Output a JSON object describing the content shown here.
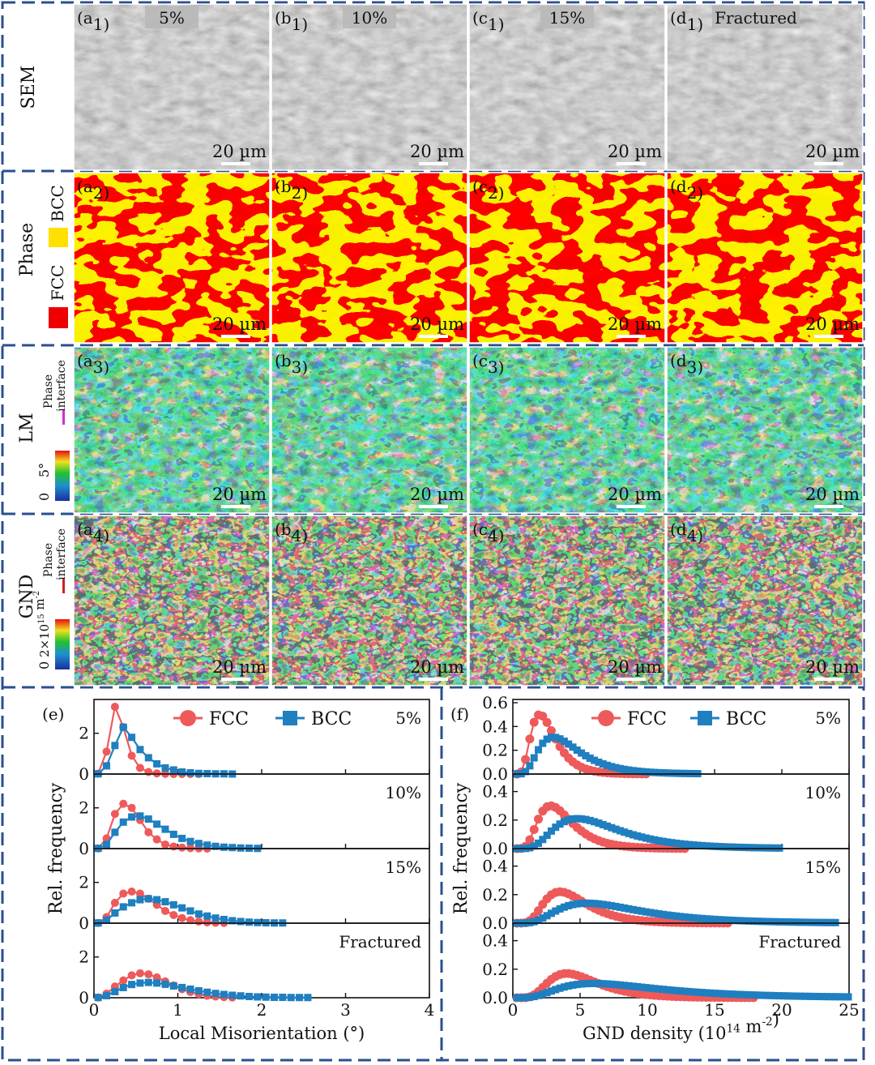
{
  "rows": [
    {
      "label": "SEM",
      "scale": "20 µm",
      "panels": [
        {
          "letter": "a",
          "sub": "1",
          "strain": "5%"
        },
        {
          "letter": "b",
          "sub": "1",
          "strain": "10%"
        },
        {
          "letter": "c",
          "sub": "1",
          "strain": "15%"
        },
        {
          "letter": "d",
          "sub": "1",
          "strain": "Fractured"
        }
      ]
    },
    {
      "label": "Phase",
      "scale": "20 µm",
      "legend": {
        "bcc": "BCC",
        "fcc": "FCC",
        "bcc_color": "#ffe000",
        "fcc_color": "#ee0000"
      },
      "panels": [
        {
          "letter": "a",
          "sub": "2"
        },
        {
          "letter": "b",
          "sub": "2"
        },
        {
          "letter": "c",
          "sub": "2"
        },
        {
          "letter": "d",
          "sub": "2"
        }
      ]
    },
    {
      "label": "LM",
      "scale": "20 µm",
      "legend": {
        "interface_1": "Phase",
        "interface_2": "interface",
        "interface_color": "#cc33cc",
        "max": "5°",
        "min": "0"
      },
      "panels": [
        {
          "letter": "a",
          "sub": "3"
        },
        {
          "letter": "b",
          "sub": "3"
        },
        {
          "letter": "c",
          "sub": "3"
        },
        {
          "letter": "d",
          "sub": "3"
        }
      ]
    },
    {
      "label": "GND",
      "scale": "20 µm",
      "legend": {
        "interface_1": "Phase",
        "interface_2": "interface",
        "interface_color": "#cc2222",
        "max": "2×10",
        "max_exp": "15",
        "max_unit": " m",
        "max_unit_exp": "-2",
        "min": "0"
      },
      "panels": [
        {
          "letter": "a",
          "sub": "4"
        },
        {
          "letter": "b",
          "sub": "4"
        },
        {
          "letter": "c",
          "sub": "4"
        },
        {
          "letter": "d",
          "sub": "4"
        }
      ]
    }
  ],
  "chart_data": [
    {
      "type": "line",
      "panel": "(e)",
      "xlabel": "Local Misorientation (°)",
      "ylabel": "Rel. frequency",
      "xlim": [
        0,
        4
      ],
      "xticks": [
        0,
        1,
        2,
        3,
        4
      ],
      "legend": [
        "FCC",
        "BCC"
      ],
      "colors": {
        "FCC": "#ee5a5a",
        "BCC": "#1f7fc0"
      },
      "subplots": [
        {
          "label": "5%",
          "ylim": [
            0,
            3.5
          ],
          "yticks": [
            0,
            2
          ],
          "series": [
            {
              "name": "FCC",
              "x": [
                0.05,
                0.15,
                0.25,
                0.35,
                0.45,
                0.55,
                0.65,
                0.75,
                0.85,
                0.95,
                1.05,
                1.15,
                1.25
              ],
              "values": [
                0.02,
                1.1,
                3.3,
                2.3,
                0.9,
                0.3,
                0.1,
                0.03,
                0.01,
                0,
                0,
                0,
                0
              ]
            },
            {
              "name": "BCC",
              "x": [
                0.05,
                0.15,
                0.25,
                0.35,
                0.45,
                0.55,
                0.65,
                0.75,
                0.85,
                0.95,
                1.05,
                1.15,
                1.25,
                1.35,
                1.45,
                1.55,
                1.65
              ],
              "values": [
                0.01,
                0.4,
                1.4,
                2.3,
                1.8,
                1.2,
                0.8,
                0.5,
                0.3,
                0.2,
                0.1,
                0.06,
                0.03,
                0.02,
                0.01,
                0.01,
                0
              ]
            }
          ]
        },
        {
          "label": "10%",
          "ylim": [
            0,
            3.5
          ],
          "yticks": [
            0,
            2
          ],
          "series": [
            {
              "name": "FCC",
              "x": [
                0.05,
                0.15,
                0.25,
                0.35,
                0.45,
                0.55,
                0.65,
                0.75,
                0.85,
                0.95,
                1.05,
                1.15,
                1.25,
                1.35
              ],
              "values": [
                0.01,
                0.5,
                1.7,
                2.2,
                2.0,
                1.4,
                0.8,
                0.45,
                0.2,
                0.1,
                0.05,
                0.02,
                0.01,
                0
              ]
            },
            {
              "name": "BCC",
              "x": [
                0.05,
                0.15,
                0.25,
                0.35,
                0.45,
                0.55,
                0.65,
                0.75,
                0.85,
                0.95,
                1.05,
                1.15,
                1.25,
                1.35,
                1.45,
                1.55,
                1.65,
                1.75,
                1.85,
                1.95
              ],
              "values": [
                0.01,
                0.2,
                0.8,
                1.3,
                1.55,
                1.6,
                1.45,
                1.2,
                0.95,
                0.7,
                0.5,
                0.35,
                0.25,
                0.17,
                0.11,
                0.07,
                0.05,
                0.03,
                0.02,
                0.01
              ]
            }
          ]
        },
        {
          "label": "15%",
          "ylim": [
            0,
            3.5
          ],
          "yticks": [
            0,
            2
          ],
          "series": [
            {
              "name": "FCC",
              "x": [
                0.05,
                0.15,
                0.25,
                0.35,
                0.45,
                0.55,
                0.65,
                0.75,
                0.85,
                0.95,
                1.05,
                1.15,
                1.25,
                1.35,
                1.45,
                1.55
              ],
              "values": [
                0.01,
                0.3,
                1.0,
                1.45,
                1.55,
                1.45,
                1.2,
                0.9,
                0.6,
                0.4,
                0.25,
                0.15,
                0.08,
                0.04,
                0.02,
                0.01
              ]
            },
            {
              "name": "BCC",
              "x": [
                0.05,
                0.15,
                0.25,
                0.35,
                0.45,
                0.55,
                0.65,
                0.75,
                0.85,
                0.95,
                1.05,
                1.15,
                1.25,
                1.35,
                1.45,
                1.55,
                1.65,
                1.75,
                1.85,
                1.95,
                2.05,
                2.15,
                2.25
              ],
              "values": [
                0.01,
                0.15,
                0.5,
                0.8,
                1.0,
                1.15,
                1.2,
                1.15,
                1.05,
                0.9,
                0.75,
                0.6,
                0.45,
                0.35,
                0.25,
                0.18,
                0.12,
                0.08,
                0.05,
                0.03,
                0.02,
                0.01,
                0.01
              ]
            }
          ]
        },
        {
          "label": "Fractured",
          "ylim": [
            0,
            3.5
          ],
          "yticks": [
            0,
            2
          ],
          "series": [
            {
              "name": "FCC",
              "x": [
                0.05,
                0.15,
                0.25,
                0.35,
                0.45,
                0.55,
                0.65,
                0.75,
                0.85,
                0.95,
                1.05,
                1.15,
                1.25,
                1.35,
                1.45,
                1.55,
                1.65
              ],
              "values": [
                0.01,
                0.2,
                0.55,
                0.85,
                1.1,
                1.2,
                1.15,
                1.0,
                0.8,
                0.6,
                0.42,
                0.28,
                0.18,
                0.1,
                0.06,
                0.03,
                0.01
              ]
            },
            {
              "name": "BCC",
              "x": [
                0.05,
                0.15,
                0.25,
                0.35,
                0.45,
                0.55,
                0.65,
                0.75,
                0.85,
                0.95,
                1.05,
                1.15,
                1.25,
                1.35,
                1.45,
                1.55,
                1.65,
                1.75,
                1.85,
                1.95,
                2.05,
                2.15,
                2.25,
                2.35,
                2.45,
                2.55
              ],
              "values": [
                0.01,
                0.1,
                0.3,
                0.5,
                0.65,
                0.72,
                0.75,
                0.72,
                0.66,
                0.58,
                0.5,
                0.42,
                0.34,
                0.27,
                0.21,
                0.16,
                0.12,
                0.09,
                0.06,
                0.04,
                0.03,
                0.02,
                0.02,
                0.01,
                0.01,
                0.01
              ]
            }
          ]
        }
      ]
    },
    {
      "type": "line",
      "panel": "(f)",
      "xlabel": "GND density (10",
      "xlabel_exp": "14",
      "xlabel_tail": " m",
      "xlabel_tail_exp": "-2",
      "xlabel_end": ")",
      "ylabel": "Rel. frequency",
      "xlim": [
        0,
        25
      ],
      "xticks": [
        0,
        5,
        10,
        15,
        20,
        25
      ],
      "legend": [
        "FCC",
        "BCC"
      ],
      "colors": {
        "FCC": "#ee5a5a",
        "BCC": "#1f7fc0"
      },
      "subplots": [
        {
          "label": "5%",
          "ylim": [
            0,
            0.6
          ],
          "yticks": [
            0.0,
            0.2,
            0.4,
            0.6
          ],
          "series": [
            {
              "name": "FCC",
              "mode": 2.0,
              "spread": 0.45,
              "peak": 0.5,
              "xmax": 10
            },
            {
              "name": "BCC",
              "mode": 3.0,
              "spread": 0.5,
              "peak": 0.31,
              "xmax": 14
            }
          ]
        },
        {
          "label": "10%",
          "ylim": [
            0,
            0.5
          ],
          "yticks": [
            0.0,
            0.2,
            0.4
          ],
          "series": [
            {
              "name": "FCC",
              "mode": 2.8,
              "spread": 0.45,
              "peak": 0.3,
              "xmax": 13
            },
            {
              "name": "BCC",
              "mode": 4.8,
              "spread": 0.5,
              "peak": 0.21,
              "xmax": 20
            }
          ]
        },
        {
          "label": "15%",
          "ylim": [
            0,
            0.5
          ],
          "yticks": [
            0.0,
            0.2,
            0.4
          ],
          "series": [
            {
              "name": "FCC",
              "mode": 3.5,
              "spread": 0.45,
              "peak": 0.22,
              "xmax": 16
            },
            {
              "name": "BCC",
              "mode": 5.5,
              "spread": 0.55,
              "peak": 0.14,
              "xmax": 24
            }
          ]
        },
        {
          "label": "Fractured",
          "ylim": [
            0,
            0.5
          ],
          "yticks": [
            0.0,
            0.2,
            0.4
          ],
          "series": [
            {
              "name": "FCC",
              "mode": 4.0,
              "spread": 0.45,
              "peak": 0.17,
              "xmax": 18
            },
            {
              "name": "BCC",
              "mode": 6.0,
              "spread": 0.6,
              "peak": 0.1,
              "xmax": 25
            }
          ]
        }
      ]
    }
  ]
}
